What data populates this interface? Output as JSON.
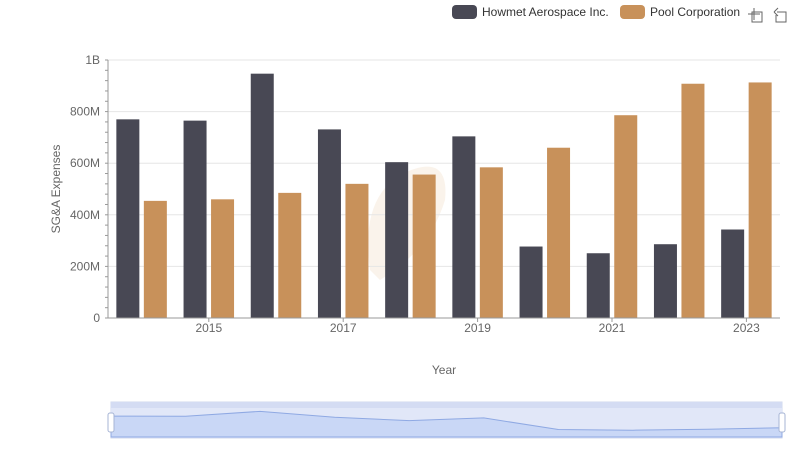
{
  "chart_data": {
    "type": "bar",
    "xlabel": "Year",
    "ylabel": "SG&A Expenses",
    "x": [
      2014,
      2015,
      2016,
      2017,
      2018,
      2019,
      2020,
      2021,
      2022,
      2023
    ],
    "x_ticks": [
      "2015",
      "2017",
      "2019",
      "2021",
      "2023"
    ],
    "ylim": [
      0,
      1000000000
    ],
    "y_ticks": [
      {
        "value": 0,
        "label": "0"
      },
      {
        "value": 200000000,
        "label": "200M"
      },
      {
        "value": 400000000,
        "label": "400M"
      },
      {
        "value": 600000000,
        "label": "600M"
      },
      {
        "value": 800000000,
        "label": "800M"
      },
      {
        "value": 1000000000,
        "label": "1B"
      }
    ],
    "grid": true,
    "legend_position": "top-right",
    "series": [
      {
        "name": "Howmet Aerospace Inc.",
        "color": "#484854",
        "values": [
          770000000,
          765000000,
          947000000,
          731000000,
          604000000,
          704000000,
          277000000,
          251000000,
          286000000,
          343000000
        ]
      },
      {
        "name": "Pool Corporation",
        "color": "#c8915a",
        "values": [
          454000000,
          460000000,
          485000000,
          520000000,
          556000000,
          584000000,
          660000000,
          786000000,
          908000000,
          913000000
        ]
      }
    ]
  },
  "toolbar": {
    "icons": [
      "zoom-icon",
      "reset-zoom-icon"
    ]
  }
}
